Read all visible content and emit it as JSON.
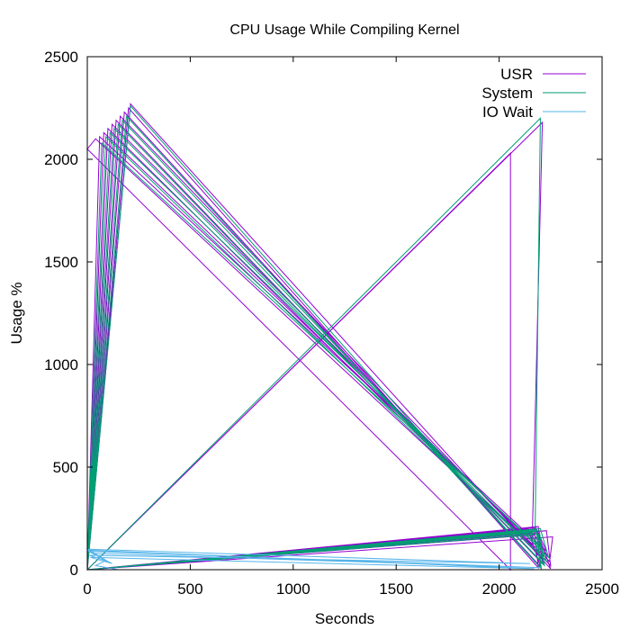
{
  "chart_data": {
    "type": "line",
    "title": "CPU Usage While Compiling Kernel",
    "xlabel": "Seconds",
    "ylabel": "Usage %",
    "xlim": [
      0,
      2500
    ],
    "ylim": [
      0,
      2500
    ],
    "xticks": [
      0,
      500,
      1000,
      1500,
      2000,
      2500
    ],
    "yticks": [
      0,
      500,
      1000,
      1500,
      2000,
      2500
    ],
    "grid": false,
    "legend_position": "top-right",
    "colors": {
      "USR": "#9400d3",
      "System": "#009e73",
      "IO Wait": "#56b4e9"
    },
    "series": [
      {
        "name": "USR",
        "color": "#9400d3",
        "x": [
          0,
          2055,
          2055,
          0,
          40,
          2160,
          2210,
          0,
          60,
          2230,
          2180,
          0,
          80,
          2240,
          2170,
          0,
          100,
          2215,
          2190,
          0,
          120,
          2245,
          2260,
          0,
          140,
          2210,
          2190,
          0,
          160,
          2250,
          2230,
          0,
          180,
          2200,
          2140,
          0,
          200,
          2190,
          2170,
          0,
          210,
          2250,
          2175
        ],
        "y": [
          0,
          2030,
          0,
          2050,
          2100,
          120,
          2180,
          0,
          2110,
          90,
          200,
          0,
          2130,
          60,
          170,
          0,
          2150,
          50,
          210,
          0,
          2170,
          40,
          160,
          0,
          2190,
          30,
          180,
          0,
          2210,
          20,
          190,
          0,
          2230,
          15,
          200,
          0,
          2250,
          10,
          205,
          0,
          2270,
          5,
          215
        ]
      },
      {
        "name": "System",
        "color": "#009e73",
        "x": [
          0,
          2200,
          2175,
          0,
          70,
          2210,
          2150,
          0,
          90,
          2190,
          2160,
          0,
          110,
          2240,
          2200,
          0,
          130,
          2230,
          2180,
          0,
          150,
          2215,
          2190,
          0,
          170,
          2220,
          2195,
          0,
          190,
          2200,
          2180,
          0,
          210,
          2205,
          2185
        ],
        "y": [
          0,
          2200,
          190,
          0,
          2080,
          100,
          170,
          0,
          2110,
          80,
          180,
          0,
          2130,
          60,
          200,
          0,
          2150,
          40,
          185,
          0,
          2170,
          30,
          175,
          0,
          2190,
          20,
          190,
          0,
          2210,
          10,
          195,
          0,
          2260,
          5,
          180
        ]
      },
      {
        "name": "IO Wait",
        "color": "#56b4e9",
        "x": [
          0,
          60,
          20,
          100,
          10,
          2150,
          0,
          80,
          30,
          2200,
          5,
          120,
          15,
          2170,
          0,
          90,
          40,
          150
        ],
        "y": [
          100,
          60,
          90,
          40,
          70,
          30,
          100,
          50,
          80,
          10,
          90,
          30,
          60,
          5,
          95,
          45,
          20,
          0
        ]
      }
    ]
  }
}
